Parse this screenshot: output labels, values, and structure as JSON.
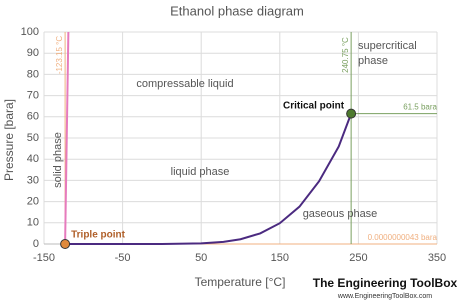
{
  "chart_data": {
    "type": "line",
    "title": "Ethanol phase diagram",
    "x_label": "Temperature [°C]",
    "y_label": "Pressure [bara]",
    "xlim": [
      -150,
      350
    ],
    "xticks": [
      -150,
      -50,
      50,
      150,
      250,
      350
    ],
    "ylim": [
      0,
      100
    ],
    "yticks": [
      0,
      10,
      20,
      30,
      40,
      50,
      60,
      70,
      80,
      90,
      100
    ],
    "grid": true,
    "series": [
      {
        "color": "#e67bbd",
        "x": [
          -123.15,
          -119
        ],
        "values": [
          4.3e-09,
          100
        ]
      },
      {
        "color": "#4b2a80",
        "x": [
          -123.15,
          -100,
          -50,
          0,
          50,
          78.3,
          100,
          125,
          150,
          175,
          200,
          225,
          240.75
        ],
        "values": [
          4.3e-09,
          2e-07,
          0.0003,
          0.016,
          0.29,
          1.01,
          2.26,
          5.0,
          9.8,
          17.6,
          29.6,
          46.0,
          61.5
        ]
      }
    ],
    "points": [
      {
        "label": "Triple point",
        "x": -123.15,
        "y": 4.3e-09,
        "color": "#e08a3c"
      },
      {
        "label": "Critical point",
        "x": 240.75,
        "y": 61.5,
        "color": "#4e7a2e"
      }
    ],
    "reference_lines": [
      {
        "axis": "x",
        "value": {
          "value": -123.15,
          "label": "-123.15 °C"
        },
        "color": "#f0b080"
      },
      {
        "axis": "y",
        "value": {
          "value": 4.3e-09,
          "label": "0.0000000043 bara"
        },
        "color": "#f0b080"
      },
      {
        "axis": "x",
        "value": {
          "value": 240.75,
          "label": "240.75 °C"
        },
        "color": "#7aa060"
      },
      {
        "axis": "y",
        "value": {
          "value": 61.5,
          "label": "61.5 bara"
        },
        "color": "#7aa060"
      }
    ],
    "annotations": [
      "compressable liquid",
      "supercritical",
      "phase",
      "liquid phase",
      "gaseous phase",
      "solid phase"
    ],
    "logo": {
      "name": "The Engineering ToolBox",
      "url": "www.EngineeringToolBox.com"
    }
  }
}
